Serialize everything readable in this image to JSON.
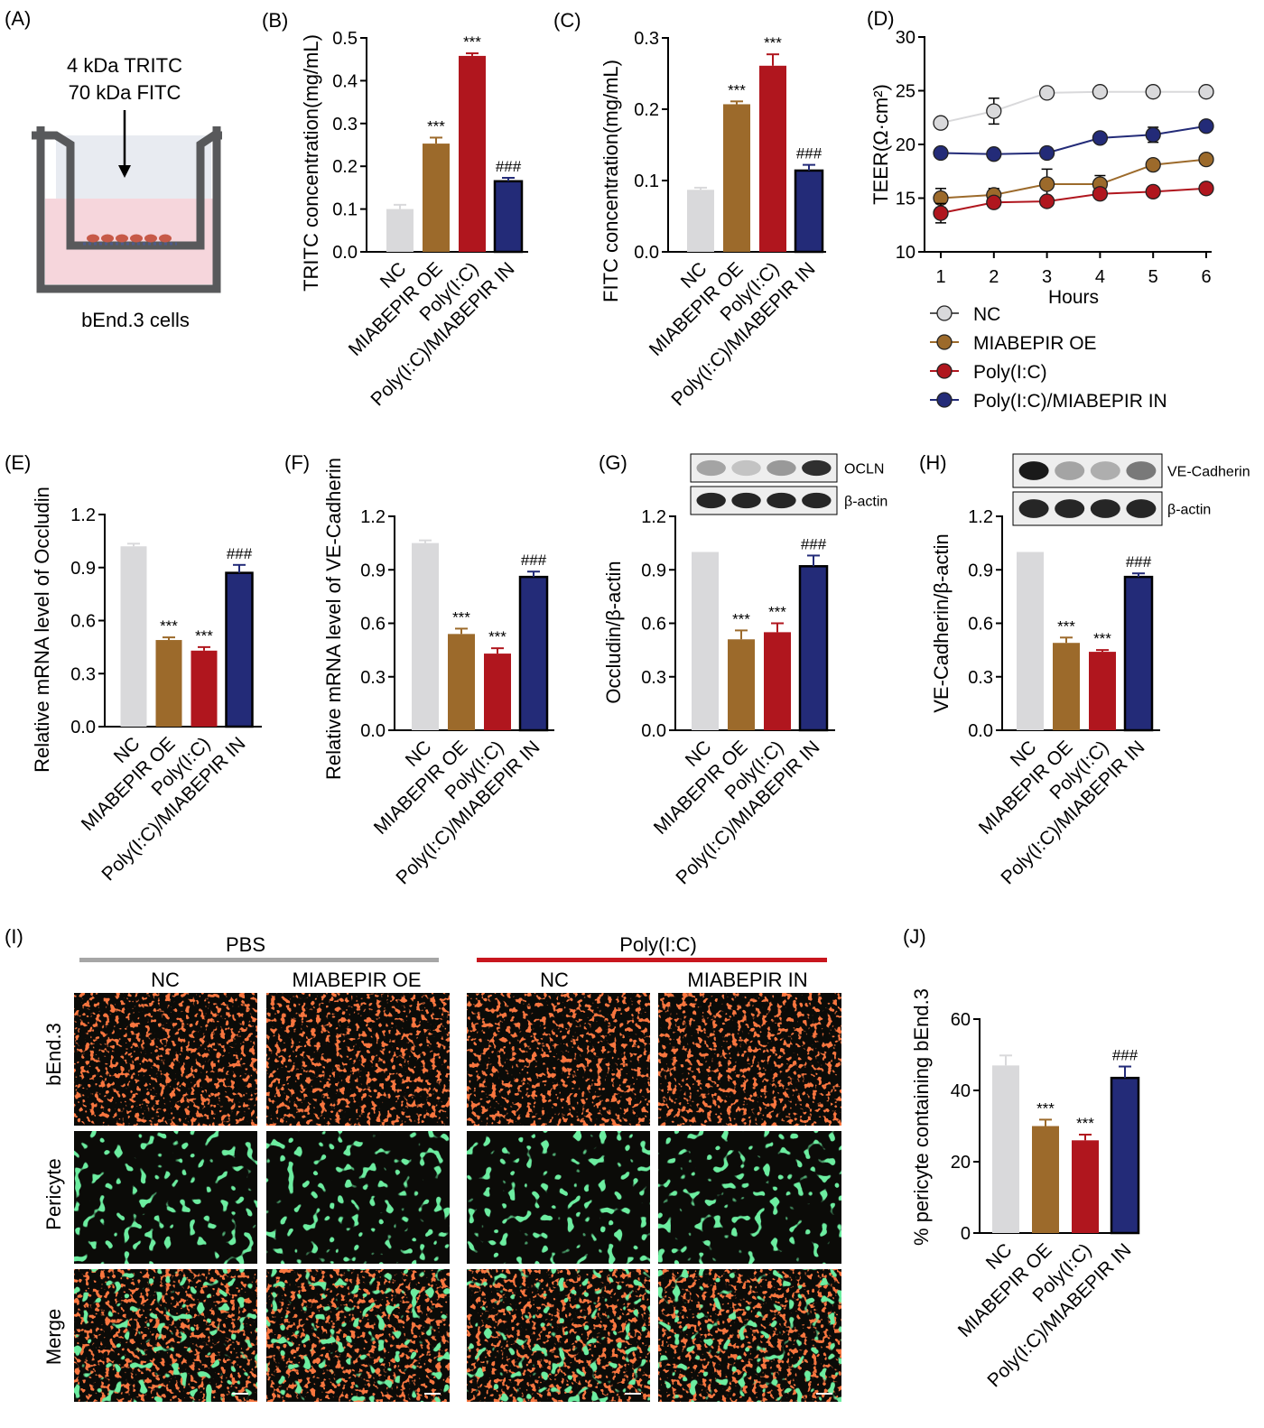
{
  "colors": {
    "NC": "#d9d9db",
    "MIABEPIR OE": "#9c6a2b",
    "Poly(I:C)": "#b0161e",
    "Poly(I:C)/MIABEPIR IN": "#232b78",
    "Poly(I:C)/MIABEPIR IN outline": "#000000",
    "error": "#000000"
  },
  "categories": [
    "NC",
    "MIABEPIR OE",
    "Poly(I:C)",
    "Poly(I:C)/MIABEPIR IN"
  ],
  "panelA": {
    "letter": "(A)",
    "line1": "4 kDa TRITC",
    "line2": "70 kDa FITC",
    "caption": "bEnd.3 cells"
  },
  "chart_data": [
    {
      "panel": "(B)",
      "type": "bar",
      "categories": [
        "NC",
        "MIABEPIR OE",
        "Poly(I:C)",
        "Poly(I:C)/MIABEPIR IN"
      ],
      "values": [
        0.1,
        0.253,
        0.458,
        0.165
      ],
      "errors": [
        0.01,
        0.014,
        0.006,
        0.008
      ],
      "annotations": [
        "",
        "***",
        "***",
        "###"
      ],
      "ylabel": "TRITC concentration(mg/mL)",
      "ylim": [
        0,
        0.5
      ],
      "yticks": [
        "0.0",
        "0.1",
        "0.2",
        "0.3",
        "0.4",
        "0.5"
      ]
    },
    {
      "panel": "(C)",
      "type": "bar",
      "categories": [
        "NC",
        "MIABEPIR OE",
        "Poly(I:C)",
        "Poly(I:C)/MIABEPIR IN"
      ],
      "values": [
        0.087,
        0.207,
        0.261,
        0.114
      ],
      "errors": [
        0.003,
        0.004,
        0.016,
        0.008
      ],
      "annotations": [
        "",
        "***",
        "***",
        "###"
      ],
      "ylabel": "FITC concentration(mg/mL)",
      "ylim": [
        0,
        0.3
      ],
      "yticks": [
        "0.0",
        "0.1",
        "0.2",
        "0.3"
      ]
    },
    {
      "panel": "(D)",
      "type": "line",
      "x": [
        1,
        2,
        3,
        4,
        5,
        6
      ],
      "series": [
        {
          "name": "NC",
          "values": [
            22.0,
            23.1,
            24.8,
            24.9,
            24.9,
            24.9
          ],
          "errors": [
            0.4,
            1.2,
            0.2,
            0.2,
            0.2,
            0.2
          ]
        },
        {
          "name": "MIABEPIR OE",
          "values": [
            15.0,
            15.3,
            16.3,
            16.3,
            18.1,
            18.6
          ],
          "errors": [
            0.9,
            0.6,
            1.4,
            0.8,
            0.3,
            0.3
          ]
        },
        {
          "name": "Poly(I:C)",
          "values": [
            13.6,
            14.6,
            14.7,
            15.4,
            15.6,
            15.9
          ],
          "errors": [
            0.9,
            0.3,
            0.3,
            0.3,
            0.2,
            0.2
          ]
        },
        {
          "name": "Poly(I:C)/MIABEPIR IN",
          "values": [
            19.2,
            19.1,
            19.2,
            20.6,
            20.9,
            21.7
          ],
          "errors": [
            0.3,
            0.2,
            0.3,
            0.3,
            0.7,
            0.4
          ]
        }
      ],
      "xlabel": "Hours",
      "ylabel": "TEER(Ω·cm²)",
      "xlim": [
        1,
        6
      ],
      "ylim": [
        10,
        30
      ],
      "xticks": [
        "1",
        "2",
        "3",
        "4",
        "5",
        "6"
      ],
      "yticks": [
        "10",
        "15",
        "20",
        "25",
        "30"
      ],
      "legend_position": "bottom"
    },
    {
      "panel": "(E)",
      "type": "bar",
      "categories": [
        "NC",
        "MIABEPIR OE",
        "Poly(I:C)",
        "Poly(I:C)/MIABEPIR IN"
      ],
      "values": [
        1.02,
        0.49,
        0.43,
        0.87
      ],
      "errors": [
        0.015,
        0.015,
        0.02,
        0.045
      ],
      "annotations": [
        "",
        "***",
        "***",
        "###"
      ],
      "ylabel": "Relative mRNA level of Occludin",
      "ylim": [
        0,
        1.2
      ],
      "yticks": [
        "0.0",
        "0.3",
        "0.6",
        "0.9",
        "1.2"
      ]
    },
    {
      "panel": "(F)",
      "type": "bar",
      "categories": [
        "NC",
        "MIABEPIR OE",
        "Poly(I:C)",
        "Poly(I:C)/MIABEPIR IN"
      ],
      "values": [
        1.05,
        0.54,
        0.43,
        0.86
      ],
      "errors": [
        0.015,
        0.03,
        0.03,
        0.03
      ],
      "annotations": [
        "",
        "***",
        "***",
        "###"
      ],
      "ylabel": "Relative mRNA level of VE-Cadherin",
      "ylim": [
        0,
        1.2
      ],
      "yticks": [
        "0.0",
        "0.3",
        "0.6",
        "0.9",
        "1.2"
      ]
    },
    {
      "panel": "(G)",
      "type": "bar",
      "categories": [
        "NC",
        "MIABEPIR OE",
        "Poly(I:C)",
        "Poly(I:C)/MIABEPIR IN"
      ],
      "values": [
        1.0,
        0.51,
        0.55,
        0.92
      ],
      "errors": [
        0,
        0.05,
        0.05,
        0.06
      ],
      "annotations": [
        "",
        "***",
        "***",
        "###"
      ],
      "ylabel": "Occludin/β-actin",
      "ylim": [
        0,
        1.2
      ],
      "yticks": [
        "0.0",
        "0.3",
        "0.6",
        "0.9",
        "1.2"
      ],
      "blot_labels": [
        "OCLN",
        "β-actin"
      ]
    },
    {
      "panel": "(H)",
      "type": "bar",
      "categories": [
        "NC",
        "MIABEPIR OE",
        "Poly(I:C)",
        "Poly(I:C)/MIABEPIR IN"
      ],
      "values": [
        1.0,
        0.49,
        0.44,
        0.86
      ],
      "errors": [
        0,
        0.03,
        0.01,
        0.02
      ],
      "annotations": [
        "",
        "***",
        "***",
        "###"
      ],
      "ylabel": "VE-Cadherin/β-actin",
      "ylim": [
        0,
        1.2
      ],
      "yticks": [
        "0.0",
        "0.3",
        "0.6",
        "0.9",
        "1.2"
      ],
      "blot_labels": [
        "VE-Cadherin",
        "β-actin"
      ]
    },
    {
      "panel": "(J)",
      "type": "bar",
      "categories": [
        "NC",
        "MIABEPIR OE",
        "Poly(I:C)",
        "Poly(I:C)/MIABEPIR IN"
      ],
      "values": [
        47.0,
        30.0,
        26.0,
        43.5
      ],
      "errors": [
        2.8,
        1.8,
        1.6,
        3.2
      ],
      "annotations": [
        "",
        "***",
        "***",
        "###"
      ],
      "ylabel": "% pericyte containing bEnd.3",
      "ylim": [
        0,
        60
      ],
      "yticks": [
        "0",
        "20",
        "40",
        "60"
      ]
    }
  ],
  "panelI": {
    "letter": "(I)",
    "groups": [
      {
        "label": "PBS",
        "color": "#a6a6a6"
      },
      {
        "label": "Poly(I:C)",
        "color": "#c8161e"
      }
    ],
    "columns": [
      "NC",
      "MIABEPIR OE",
      "NC",
      "MIABEPIR IN"
    ],
    "rows": [
      "bEnd.3",
      "Pericyte",
      "Merge"
    ]
  }
}
